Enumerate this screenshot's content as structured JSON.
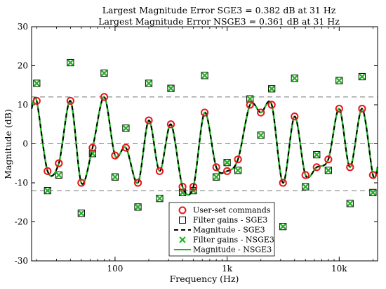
{
  "chart_data": {
    "type": "line",
    "title_lines": [
      "Largest Magnitude Error SGE3 = 0.382 dB at 31 Hz",
      "Largest Magnitude Error NSGE3 = 0.361 dB at 31 Hz"
    ],
    "xlabel": "Frequency (Hz)",
    "ylabel": "Magnitude (dB)",
    "xscale": "log",
    "xlim": [
      18,
      22000
    ],
    "ylim": [
      -30,
      30
    ],
    "x_ticks": [
      100,
      1000,
      10000
    ],
    "x_tick_labels": [
      "100",
      "1k",
      "10k"
    ],
    "y_ticks": [
      -30,
      -20,
      -10,
      0,
      10,
      20,
      30
    ],
    "y_tick_labels": [
      "-30",
      "-20",
      "-10",
      "0",
      "10",
      "20",
      "30"
    ],
    "reference_lines": [
      12,
      0,
      -12
    ],
    "legend_position": "bottom-center",
    "colors": {
      "user_set": "#e8151b",
      "sge3_marker": "#000000",
      "sge3_line": "#000000",
      "nsge3_marker": "#1fb41f",
      "nsge3_line": "#1fb41f",
      "reference": "#777777"
    },
    "frequencies": [
      20,
      25,
      31.5,
      40,
      50,
      63,
      80,
      100,
      125,
      160,
      200,
      250,
      315,
      400,
      500,
      630,
      800,
      1000,
      1250,
      1600,
      2000,
      2500,
      3150,
      4000,
      5000,
      6300,
      8000,
      10000,
      12500,
      16000,
      20000
    ],
    "user_set_commands": [
      11,
      -7,
      -5,
      11,
      -10,
      -1,
      12,
      -3,
      -1,
      -10,
      6,
      -7,
      5,
      -11,
      -11,
      8,
      -6,
      -7,
      -4,
      10,
      8,
      10,
      -10,
      7,
      -8,
      -6,
      -4,
      9,
      -6,
      9,
      -8
    ],
    "filter_gains_sge3": [
      15.5,
      -12,
      -8,
      20.8,
      -17.8,
      -2.5,
      18.1,
      -8.5,
      4,
      -16.2,
      15.5,
      -14,
      14.2,
      -12.5,
      -12,
      17.5,
      -8.5,
      -4.8,
      -6.8,
      11.5,
      2.2,
      14.1,
      -21.2,
      16.8,
      -11,
      -2.8,
      -6.8,
      16.2,
      -15.3,
      17.2,
      -12.5
    ],
    "filter_gains_nsge3": [
      15.5,
      -12,
      -8,
      20.8,
      -17.8,
      -2.5,
      18.1,
      -8.5,
      4,
      -16.2,
      15.5,
      -14,
      14.2,
      -12.5,
      -12,
      17.5,
      -8.5,
      -4.8,
      -6.8,
      11.5,
      2.2,
      14.1,
      -21.2,
      16.8,
      -11,
      -2.8,
      -6.8,
      16.2,
      -15.3,
      17.2,
      -12.5
    ],
    "magnitude_sge3_endpoints": {
      "start_x": 18,
      "start_y": 9,
      "end_x": 22000,
      "end_y": -6
    },
    "series": [
      {
        "name": "User-set commands",
        "marker": "circle"
      },
      {
        "name": "Filter gains - SGE3",
        "marker": "square"
      },
      {
        "name": "Magnitude - SGE3",
        "style": "dashed"
      },
      {
        "name": "Filter gains - NSGE3",
        "marker": "x"
      },
      {
        "name": "Magnitude - NSGE3",
        "style": "solid"
      }
    ]
  }
}
